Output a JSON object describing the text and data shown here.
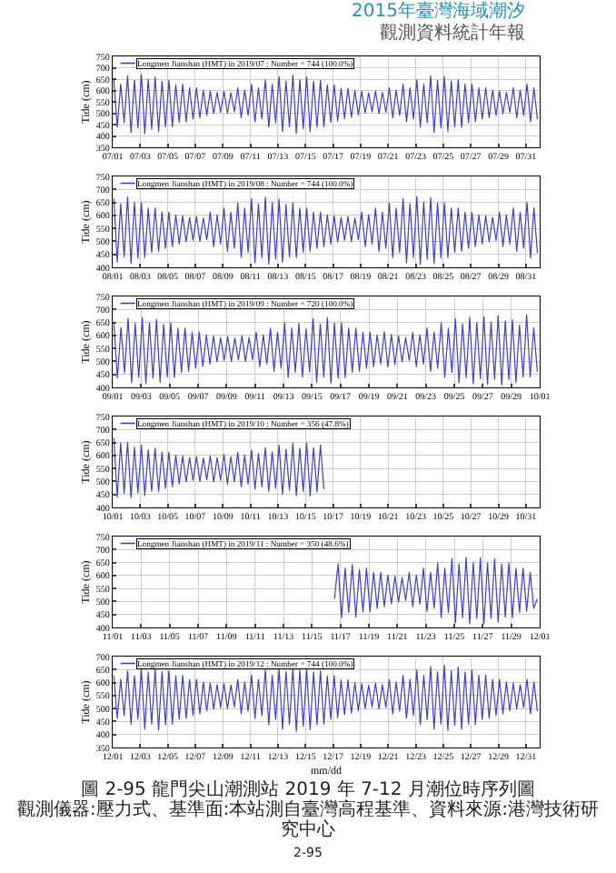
{
  "chart_data": [
    {
      "type": "line",
      "annotations": [
        "2015年臺灣海域潮汐",
        "觀測資料統計年報"
      ],
      "ylabel": "Tide (cm)",
      "legend": "top left",
      "grid": true,
      "xlim": [
        "2019-07-01",
        "2019-08-01"
      ],
      "xticks": [
        {
          "value": "2019-07-01",
          "label": "07/01"
        },
        {
          "value": "2019-07-03",
          "label": "07/03"
        },
        {
          "value": "2019-07-05",
          "label": "07/05"
        },
        {
          "value": "2019-07-07",
          "label": "07/07"
        },
        {
          "value": "2019-07-09",
          "label": "07/09"
        },
        {
          "value": "2019-07-11",
          "label": "07/11"
        },
        {
          "value": "2019-07-13",
          "label": "07/13"
        },
        {
          "value": "2019-07-15",
          "label": "07/15"
        },
        {
          "value": "2019-07-17",
          "label": "07/17"
        },
        {
          "value": "2019-07-19",
          "label": "07/19"
        },
        {
          "value": "2019-07-21",
          "label": "07/21"
        },
        {
          "value": "2019-07-23",
          "label": "07/23"
        },
        {
          "value": "2019-07-25",
          "label": "07/25"
        },
        {
          "value": "2019-07-27",
          "label": "07/27"
        },
        {
          "value": "2019-07-29",
          "label": "07/29"
        },
        {
          "value": "2019-07-31",
          "label": "07/31"
        }
      ],
      "ylim": [
        350,
        750
      ],
      "yticks": [
        350,
        400,
        450,
        500,
        550,
        600,
        650,
        700,
        750
      ],
      "x": [
        "2019-07-01T02:00",
        "2019-07-01T08:00",
        "2019-07-01T14:00",
        "2019-07-01T20:00",
        "2019-07-02T02:00",
        "2019-07-02T08:00",
        "2019-07-02T14:00",
        "2019-07-02T20:00",
        "2019-07-03T02:00",
        "2019-07-03T08:00",
        "2019-07-03T14:00",
        "2019-07-03T20:00",
        "2019-07-04T02:00",
        "2019-07-04T08:00",
        "2019-07-04T14:00",
        "2019-07-04T20:00",
        "2019-07-05T02:00",
        "2019-07-05T08:00",
        "2019-07-05T14:00",
        "2019-07-05T20:00",
        "2019-07-06T02:00",
        "2019-07-06T08:00",
        "2019-07-06T14:00",
        "2019-07-06T20:00",
        "2019-07-07T02:00",
        "2019-07-07T08:00",
        "2019-07-07T14:00",
        "2019-07-07T20:00",
        "2019-07-08T02:00",
        "2019-07-08T08:00",
        "2019-07-08T14:00",
        "2019-07-08T20:00",
        "2019-07-09T02:00",
        "2019-07-09T08:00",
        "2019-07-09T14:00",
        "2019-07-09T20:00",
        "2019-07-10T02:00",
        "2019-07-10T08:00",
        "2019-07-10T14:00",
        "2019-07-10T20:00",
        "2019-07-11T02:00",
        "2019-07-11T08:00",
        "2019-07-11T14:00",
        "2019-07-11T20:00",
        "2019-07-12T02:00",
        "2019-07-12T08:00",
        "2019-07-12T14:00",
        "2019-07-12T20:00",
        "2019-07-13T02:00",
        "2019-07-13T08:00",
        "2019-07-13T14:00",
        "2019-07-13T20:00",
        "2019-07-14T02:00",
        "2019-07-14T08:00",
        "2019-07-14T14:00",
        "2019-07-14T20:00",
        "2019-07-15T02:00",
        "2019-07-15T08:00",
        "2019-07-15T14:00",
        "2019-07-15T20:00",
        "2019-07-16T02:00",
        "2019-07-16T08:00",
        "2019-07-16T14:00",
        "2019-07-16T20:00",
        "2019-07-17T02:00",
        "2019-07-17T08:00",
        "2019-07-17T14:00",
        "2019-07-17T20:00",
        "2019-07-18T02:00",
        "2019-07-18T08:00",
        "2019-07-18T14:00",
        "2019-07-18T20:00",
        "2019-07-19T02:00",
        "2019-07-19T08:00",
        "2019-07-19T14:00",
        "2019-07-19T20:00",
        "2019-07-20T02:00",
        "2019-07-20T08:00",
        "2019-07-20T14:00",
        "2019-07-20T20:00",
        "2019-07-21T02:00",
        "2019-07-21T08:00",
        "2019-07-21T14:00",
        "2019-07-21T20:00",
        "2019-07-22T02:00",
        "2019-07-22T08:00",
        "2019-07-22T14:00",
        "2019-07-22T20:00",
        "2019-07-23T02:00",
        "2019-07-23T08:00",
        "2019-07-23T14:00",
        "2019-07-23T20:00",
        "2019-07-24T02:00",
        "2019-07-24T08:00",
        "2019-07-24T14:00",
        "2019-07-24T20:00",
        "2019-07-25T02:00",
        "2019-07-25T08:00",
        "2019-07-25T14:00",
        "2019-07-25T20:00",
        "2019-07-26T02:00",
        "2019-07-26T08:00",
        "2019-07-26T14:00",
        "2019-07-26T20:00",
        "2019-07-27T02:00",
        "2019-07-27T08:00",
        "2019-07-27T14:00",
        "2019-07-27T20:00",
        "2019-07-28T02:00",
        "2019-07-28T08:00",
        "2019-07-28T14:00",
        "2019-07-28T20:00",
        "2019-07-29T02:00",
        "2019-07-29T08:00",
        "2019-07-29T14:00",
        "2019-07-29T20:00",
        "2019-07-30T02:00",
        "2019-07-30T08:00",
        "2019-07-30T14:00",
        "2019-07-30T20:00",
        "2019-07-31T02:00",
        "2019-07-31T08:00",
        "2019-07-31T14:00",
        "2019-07-31T20:00"
      ],
      "series": [
        {
          "name": "Longmen Jianshan (HMT) in 2019/07 : Number = 744 (100.0%)",
          "color": "#4040c0",
          "values": [
            648,
            438,
            628,
            458,
            665,
            415,
            645,
            435,
            670,
            410,
            650,
            430,
            660,
            420,
            640,
            440,
            645,
            440,
            625,
            460,
            628,
            462,
            612,
            474,
            612,
            480,
            602,
            490,
            598,
            498,
            592,
            504,
            596,
            500,
            590,
            506,
            612,
            480,
            602,
            490,
            628,
            462,
            612,
            474,
            648,
            438,
            628,
            458,
            662,
            420,
            642,
            440,
            668,
            412,
            648,
            432,
            660,
            418,
            640,
            438,
            645,
            440,
            625,
            460,
            625,
            465,
            610,
            476,
            610,
            482,
            600,
            492,
            596,
            500,
            590,
            506,
            598,
            498,
            592,
            504,
            612,
            480,
            602,
            490,
            628,
            462,
            612,
            474,
            648,
            438,
            628,
            458,
            665,
            415,
            645,
            435,
            662,
            420,
            642,
            440,
            648,
            438,
            628,
            458,
            628,
            462,
            612,
            474,
            612,
            480,
            602,
            490,
            598,
            498,
            592,
            504,
            612,
            480,
            602,
            490,
            628,
            462,
            612,
            474
          ]
        }
      ]
    },
    {
      "type": "line",
      "ylabel": "Tide (cm)",
      "legend": "top left",
      "grid": true,
      "xlim": [
        "2019-08-01",
        "2019-09-01"
      ],
      "xticks": [
        {
          "value": "2019-08-01",
          "label": "08/01"
        },
        {
          "value": "2019-08-03",
          "label": "08/03"
        },
        {
          "value": "2019-08-05",
          "label": "08/05"
        },
        {
          "value": "2019-08-07",
          "label": "08/07"
        },
        {
          "value": "2019-08-09",
          "label": "08/09"
        },
        {
          "value": "2019-08-11",
          "label": "08/11"
        },
        {
          "value": "2019-08-13",
          "label": "08/13"
        },
        {
          "value": "2019-08-15",
          "label": "08/15"
        },
        {
          "value": "2019-08-17",
          "label": "08/17"
        },
        {
          "value": "2019-08-19",
          "label": "08/19"
        },
        {
          "value": "2019-08-21",
          "label": "08/21"
        },
        {
          "value": "2019-08-23",
          "label": "08/23"
        },
        {
          "value": "2019-08-25",
          "label": "08/25"
        },
        {
          "value": "2019-08-27",
          "label": "08/27"
        },
        {
          "value": "2019-08-29",
          "label": "08/29"
        },
        {
          "value": "2019-08-31",
          "label": "08/31"
        }
      ],
      "ylim": [
        400,
        750
      ],
      "yticks": [
        400,
        450,
        500,
        550,
        600,
        650,
        700,
        750
      ],
      "x": [
        "2019-08-01T02:00",
        "2019-08-01T08:00",
        "2019-08-01T14:00",
        "2019-08-01T20:00",
        "2019-08-02T02:00",
        "2019-08-02T08:00",
        "2019-08-02T14:00",
        "2019-08-02T20:00",
        "2019-08-03T02:00",
        "2019-08-03T08:00",
        "2019-08-03T14:00",
        "2019-08-03T20:00",
        "2019-08-04T02:00",
        "2019-08-04T08:00",
        "2019-08-04T14:00",
        "2019-08-04T20:00",
        "2019-08-05T02:00",
        "2019-08-05T08:00",
        "2019-08-05T14:00",
        "2019-08-05T20:00",
        "2019-08-06T02:00",
        "2019-08-06T08:00",
        "2019-08-06T14:00",
        "2019-08-06T20:00",
        "2019-08-07T02:00",
        "2019-08-07T08:00",
        "2019-08-07T14:00",
        "2019-08-07T20:00",
        "2019-08-08T02:00",
        "2019-08-08T08:00",
        "2019-08-08T14:00",
        "2019-08-08T20:00",
        "2019-08-09T02:00",
        "2019-08-09T08:00",
        "2019-08-09T14:00",
        "2019-08-09T20:00",
        "2019-08-10T02:00",
        "2019-08-10T08:00",
        "2019-08-10T14:00",
        "2019-08-10T20:00",
        "2019-08-11T02:00",
        "2019-08-11T08:00",
        "2019-08-11T14:00",
        "2019-08-11T20:00",
        "2019-08-12T02:00",
        "2019-08-12T08:00",
        "2019-08-12T14:00",
        "2019-08-12T20:00",
        "2019-08-13T02:00",
        "2019-08-13T08:00",
        "2019-08-13T14:00",
        "2019-08-13T20:00",
        "2019-08-14T02:00",
        "2019-08-14T08:00",
        "2019-08-14T14:00",
        "2019-08-14T20:00",
        "2019-08-15T02:00",
        "2019-08-15T08:00",
        "2019-08-15T14:00",
        "2019-08-15T20:00",
        "2019-08-16T02:00",
        "2019-08-16T08:00",
        "2019-08-16T14:00",
        "2019-08-16T20:00",
        "2019-08-17T02:00",
        "2019-08-17T08:00",
        "2019-08-17T14:00",
        "2019-08-17T20:00",
        "2019-08-18T02:00",
        "2019-08-18T08:00",
        "2019-08-18T14:00",
        "2019-08-18T20:00",
        "2019-08-19T02:00",
        "2019-08-19T08:00",
        "2019-08-19T14:00",
        "2019-08-19T20:00",
        "2019-08-20T02:00",
        "2019-08-20T08:00",
        "2019-08-20T14:00",
        "2019-08-20T20:00",
        "2019-08-21T02:00",
        "2019-08-21T08:00",
        "2019-08-21T14:00",
        "2019-08-21T20:00",
        "2019-08-22T02:00",
        "2019-08-22T08:00",
        "2019-08-22T14:00",
        "2019-08-22T20:00",
        "2019-08-23T02:00",
        "2019-08-23T08:00",
        "2019-08-23T14:00",
        "2019-08-23T20:00",
        "2019-08-24T02:00",
        "2019-08-24T08:00",
        "2019-08-24T14:00",
        "2019-08-24T20:00",
        "2019-08-25T02:00",
        "2019-08-25T08:00",
        "2019-08-25T14:00",
        "2019-08-25T20:00",
        "2019-08-26T02:00",
        "2019-08-26T08:00",
        "2019-08-26T14:00",
        "2019-08-26T20:00",
        "2019-08-27T02:00",
        "2019-08-27T08:00",
        "2019-08-27T14:00",
        "2019-08-27T20:00",
        "2019-08-28T02:00",
        "2019-08-28T08:00",
        "2019-08-28T14:00",
        "2019-08-28T20:00",
        "2019-08-29T02:00",
        "2019-08-29T08:00",
        "2019-08-29T14:00",
        "2019-08-29T20:00",
        "2019-08-30T02:00",
        "2019-08-30T08:00",
        "2019-08-30T14:00",
        "2019-08-30T20:00",
        "2019-08-31T02:00",
        "2019-08-31T08:00",
        "2019-08-31T14:00",
        "2019-08-31T20:00"
      ],
      "series": [
        {
          "name": "Longmen Jianshan (HMT) in 2019/08 : Number = 744 (100.0%)",
          "color": "#4040c0",
          "values": [
            665,
            420,
            645,
            440,
            670,
            415,
            650,
            435,
            648,
            438,
            628,
            458,
            628,
            462,
            612,
            474,
            612,
            480,
            602,
            490,
            598,
            498,
            592,
            504,
            596,
            500,
            590,
            506,
            612,
            480,
            602,
            490,
            628,
            462,
            612,
            474,
            648,
            438,
            628,
            458,
            665,
            418,
            645,
            438,
            670,
            412,
            650,
            432,
            662,
            420,
            642,
            440,
            648,
            438,
            628,
            458,
            628,
            462,
            612,
            474,
            612,
            480,
            602,
            490,
            598,
            498,
            592,
            504,
            596,
            500,
            590,
            506,
            612,
            480,
            602,
            490,
            628,
            462,
            612,
            474,
            648,
            438,
            628,
            458,
            665,
            418,
            645,
            438,
            672,
            412,
            652,
            432,
            668,
            415,
            648,
            435,
            648,
            438,
            628,
            458,
            628,
            462,
            612,
            474,
            612,
            480,
            602,
            490,
            598,
            498,
            592,
            504,
            612,
            480,
            602,
            490,
            628,
            462,
            612,
            474,
            650,
            436,
            630,
            456
          ]
        }
      ]
    },
    {
      "type": "line",
      "ylabel": "Tide (cm)",
      "legend": "top left",
      "grid": true,
      "xlim": [
        "2019-09-01",
        "2019-10-01"
      ],
      "xticks": [
        {
          "value": "2019-09-01",
          "label": "09/01"
        },
        {
          "value": "2019-09-03",
          "label": "09/03"
        },
        {
          "value": "2019-09-05",
          "label": "09/05"
        },
        {
          "value": "2019-09-07",
          "label": "09/07"
        },
        {
          "value": "2019-09-09",
          "label": "09/09"
        },
        {
          "value": "2019-09-11",
          "label": "09/11"
        },
        {
          "value": "2019-09-13",
          "label": "09/13"
        },
        {
          "value": "2019-09-15",
          "label": "09/15"
        },
        {
          "value": "2019-09-17",
          "label": "09/17"
        },
        {
          "value": "2019-09-19",
          "label": "09/19"
        },
        {
          "value": "2019-09-21",
          "label": "09/21"
        },
        {
          "value": "2019-09-23",
          "label": "09/23"
        },
        {
          "value": "2019-09-25",
          "label": "09/25"
        },
        {
          "value": "2019-09-27",
          "label": "09/27"
        },
        {
          "value": "2019-09-29",
          "label": "09/29"
        },
        {
          "value": "2019-10-01",
          "label": "10/01"
        }
      ],
      "ylim": [
        400,
        750
      ],
      "yticks": [
        400,
        450,
        500,
        550,
        600,
        650,
        700,
        750
      ],
      "x": [
        "2019-09-01T02:00",
        "2019-09-01T08:00",
        "2019-09-01T14:00",
        "2019-09-01T20:00",
        "2019-09-02T02:00",
        "2019-09-02T08:00",
        "2019-09-02T14:00",
        "2019-09-02T20:00",
        "2019-09-03T02:00",
        "2019-09-03T08:00",
        "2019-09-03T14:00",
        "2019-09-03T20:00",
        "2019-09-04T02:00",
        "2019-09-04T08:00",
        "2019-09-04T14:00",
        "2019-09-04T20:00",
        "2019-09-05T02:00",
        "2019-09-05T08:00",
        "2019-09-05T14:00",
        "2019-09-05T20:00",
        "2019-09-06T02:00",
        "2019-09-06T08:00",
        "2019-09-06T14:00",
        "2019-09-06T20:00",
        "2019-09-07T02:00",
        "2019-09-07T08:00",
        "2019-09-07T14:00",
        "2019-09-07T20:00",
        "2019-09-08T02:00",
        "2019-09-08T08:00",
        "2019-09-08T14:00",
        "2019-09-08T20:00",
        "2019-09-09T02:00",
        "2019-09-09T08:00",
        "2019-09-09T14:00",
        "2019-09-09T20:00",
        "2019-09-10T02:00",
        "2019-09-10T08:00",
        "2019-09-10T14:00",
        "2019-09-10T20:00",
        "2019-09-11T02:00",
        "2019-09-11T08:00",
        "2019-09-11T14:00",
        "2019-09-11T20:00",
        "2019-09-12T02:00",
        "2019-09-12T08:00",
        "2019-09-12T14:00",
        "2019-09-12T20:00",
        "2019-09-13T02:00",
        "2019-09-13T08:00",
        "2019-09-13T14:00",
        "2019-09-13T20:00",
        "2019-09-14T02:00",
        "2019-09-14T08:00",
        "2019-09-14T14:00",
        "2019-09-14T20:00",
        "2019-09-15T02:00",
        "2019-09-15T08:00",
        "2019-09-15T14:00",
        "2019-09-15T20:00",
        "2019-09-16T02:00",
        "2019-09-16T08:00",
        "2019-09-16T14:00",
        "2019-09-16T20:00",
        "2019-09-17T02:00",
        "2019-09-17T08:00",
        "2019-09-17T14:00",
        "2019-09-17T20:00",
        "2019-09-18T02:00",
        "2019-09-18T08:00",
        "2019-09-18T14:00",
        "2019-09-18T20:00",
        "2019-09-19T02:00",
        "2019-09-19T08:00",
        "2019-09-19T14:00",
        "2019-09-19T20:00",
        "2019-09-20T02:00",
        "2019-09-20T08:00",
        "2019-09-20T14:00",
        "2019-09-20T20:00",
        "2019-09-21T02:00",
        "2019-09-21T08:00",
        "2019-09-21T14:00",
        "2019-09-21T20:00",
        "2019-09-22T02:00",
        "2019-09-22T08:00",
        "2019-09-22T14:00",
        "2019-09-22T20:00",
        "2019-09-23T02:00",
        "2019-09-23T08:00",
        "2019-09-23T14:00",
        "2019-09-23T20:00",
        "2019-09-24T02:00",
        "2019-09-24T08:00",
        "2019-09-24T14:00",
        "2019-09-24T20:00",
        "2019-09-25T02:00",
        "2019-09-25T08:00",
        "2019-09-25T14:00",
        "2019-09-25T20:00",
        "2019-09-26T02:00",
        "2019-09-26T08:00",
        "2019-09-26T14:00",
        "2019-09-26T20:00",
        "2019-09-27T02:00",
        "2019-09-27T08:00",
        "2019-09-27T14:00",
        "2019-09-27T20:00",
        "2019-09-28T02:00",
        "2019-09-28T08:00",
        "2019-09-28T14:00",
        "2019-09-28T20:00",
        "2019-09-29T02:00",
        "2019-09-29T08:00",
        "2019-09-29T14:00",
        "2019-09-29T20:00",
        "2019-09-30T02:00",
        "2019-09-30T08:00",
        "2019-09-30T14:00",
        "2019-09-30T20:00"
      ],
      "series": [
        {
          "name": "Longmen Jianshan (HMT) in 2019/09 : Number = 720 (100.0%)",
          "color": "#4040c0",
          "values": [
            650,
            436,
            630,
            456,
            666,
            418,
            646,
            438,
            668,
            415,
            648,
            435,
            662,
            420,
            642,
            440,
            648,
            438,
            628,
            458,
            628,
            462,
            612,
            474,
            612,
            480,
            602,
            490,
            598,
            498,
            592,
            504,
            596,
            500,
            590,
            506,
            598,
            500,
            592,
            506,
            612,
            480,
            602,
            490,
            628,
            462,
            612,
            474,
            648,
            438,
            628,
            458,
            646,
            440,
            626,
            460,
            664,
            420,
            644,
            440,
            668,
            416,
            648,
            436,
            648,
            438,
            628,
            458,
            628,
            462,
            612,
            474,
            612,
            480,
            602,
            490,
            614,
            478,
            604,
            488,
            598,
            498,
            592,
            504,
            612,
            480,
            602,
            490,
            628,
            462,
            612,
            474,
            648,
            438,
            628,
            458,
            665,
            418,
            645,
            438,
            670,
            414,
            650,
            434,
            672,
            412,
            652,
            432,
            676,
            410,
            656,
            430,
            660,
            420,
            640,
            440,
            680,
            440,
            630,
            460
          ]
        }
      ]
    },
    {
      "type": "line",
      "ylabel": "Tide (cm)",
      "legend": "top left",
      "grid": true,
      "xlim": [
        "2019-10-01",
        "2019-11-01"
      ],
      "xticks": [
        {
          "value": "2019-10-01",
          "label": "10/01"
        },
        {
          "value": "2019-10-03",
          "label": "10/03"
        },
        {
          "value": "2019-10-05",
          "label": "10/05"
        },
        {
          "value": "2019-10-07",
          "label": "10/07"
        },
        {
          "value": "2019-10-09",
          "label": "10/09"
        },
        {
          "value": "2019-10-11",
          "label": "10/11"
        },
        {
          "value": "2019-10-13",
          "label": "10/13"
        },
        {
          "value": "2019-10-15",
          "label": "10/15"
        },
        {
          "value": "2019-10-17",
          "label": "10/17"
        },
        {
          "value": "2019-10-19",
          "label": "10/19"
        },
        {
          "value": "2019-10-21",
          "label": "10/21"
        },
        {
          "value": "2019-10-23",
          "label": "10/23"
        },
        {
          "value": "2019-10-25",
          "label": "10/25"
        },
        {
          "value": "2019-10-27",
          "label": "10/27"
        },
        {
          "value": "2019-10-29",
          "label": "10/29"
        },
        {
          "value": "2019-10-31",
          "label": "10/31"
        }
      ],
      "ylim": [
        400,
        750
      ],
      "yticks": [
        400,
        450,
        500,
        550,
        600,
        650,
        700,
        750
      ],
      "x": [
        "2019-10-01T02:00",
        "2019-10-01T08:00",
        "2019-10-01T14:00",
        "2019-10-01T20:00",
        "2019-10-02T02:00",
        "2019-10-02T08:00",
        "2019-10-02T14:00",
        "2019-10-02T20:00",
        "2019-10-03T02:00",
        "2019-10-03T08:00",
        "2019-10-03T14:00",
        "2019-10-03T20:00",
        "2019-10-04T02:00",
        "2019-10-04T08:00",
        "2019-10-04T14:00",
        "2019-10-04T20:00",
        "2019-10-05T02:00",
        "2019-10-05T08:00",
        "2019-10-05T14:00",
        "2019-10-05T20:00",
        "2019-10-06T02:00",
        "2019-10-06T08:00",
        "2019-10-06T14:00",
        "2019-10-06T20:00",
        "2019-10-07T02:00",
        "2019-10-07T08:00",
        "2019-10-07T14:00",
        "2019-10-07T20:00",
        "2019-10-08T02:00",
        "2019-10-08T08:00",
        "2019-10-08T14:00",
        "2019-10-08T20:00",
        "2019-10-09T02:00",
        "2019-10-09T08:00",
        "2019-10-09T14:00",
        "2019-10-09T20:00",
        "2019-10-10T02:00",
        "2019-10-10T08:00",
        "2019-10-10T14:00",
        "2019-10-10T20:00",
        "2019-10-11T02:00",
        "2019-10-11T08:00",
        "2019-10-11T14:00",
        "2019-10-11T20:00",
        "2019-10-12T02:00",
        "2019-10-12T08:00",
        "2019-10-12T14:00",
        "2019-10-12T20:00",
        "2019-10-13T02:00",
        "2019-10-13T08:00",
        "2019-10-13T14:00",
        "2019-10-13T20:00",
        "2019-10-14T02:00",
        "2019-10-14T08:00",
        "2019-10-14T14:00",
        "2019-10-14T20:00",
        "2019-10-15T02:00",
        "2019-10-15T08:00",
        "2019-10-15T14:00",
        "2019-10-15T20:00",
        "2019-10-16T02:00",
        "2019-10-16T08:00"
      ],
      "series": [
        {
          "name": "Longmen Jianshan (HMT) in 2019/10 : Number = 356 (47.8%)",
          "color": "#4040c0",
          "values": [
            668,
            440,
            648,
            455,
            650,
            438,
            632,
            456,
            640,
            446,
            622,
            462,
            628,
            462,
            612,
            474,
            612,
            480,
            602,
            490,
            598,
            498,
            592,
            504,
            596,
            500,
            590,
            506,
            598,
            498,
            592,
            504,
            604,
            490,
            596,
            498,
            612,
            480,
            602,
            490,
            620,
            470,
            608,
            480,
            630,
            462,
            614,
            474,
            640,
            450,
            624,
            466,
            646,
            446,
            628,
            462,
            648,
            444,
            630,
            460,
            640,
            470
          ]
        }
      ]
    },
    {
      "type": "line",
      "ylabel": "Tide (cm)",
      "legend": "top left",
      "grid": true,
      "xlim": [
        "2019-11-01",
        "2019-12-01"
      ],
      "xticks": [
        {
          "value": "2019-11-01",
          "label": "11/01"
        },
        {
          "value": "2019-11-03",
          "label": "11/03"
        },
        {
          "value": "2019-11-05",
          "label": "11/05"
        },
        {
          "value": "2019-11-07",
          "label": "11/07"
        },
        {
          "value": "2019-11-09",
          "label": "11/09"
        },
        {
          "value": "2019-11-11",
          "label": "11/11"
        },
        {
          "value": "2019-11-13",
          "label": "11/13"
        },
        {
          "value": "2019-11-15",
          "label": "11/15"
        },
        {
          "value": "2019-11-17",
          "label": "11/17"
        },
        {
          "value": "2019-11-19",
          "label": "11/19"
        },
        {
          "value": "2019-11-21",
          "label": "11/21"
        },
        {
          "value": "2019-11-23",
          "label": "11/23"
        },
        {
          "value": "2019-11-25",
          "label": "11/25"
        },
        {
          "value": "2019-11-27",
          "label": "11/27"
        },
        {
          "value": "2019-11-29",
          "label": "11/29"
        },
        {
          "value": "2019-12-01",
          "label": "12/01"
        }
      ],
      "ylim": [
        400,
        750
      ],
      "yticks": [
        400,
        450,
        500,
        550,
        600,
        650,
        700,
        750
      ],
      "x": [
        "2019-11-16T14:00",
        "2019-11-16T20:00",
        "2019-11-17T02:00",
        "2019-11-17T08:00",
        "2019-11-17T14:00",
        "2019-11-17T20:00",
        "2019-11-18T02:00",
        "2019-11-18T08:00",
        "2019-11-18T14:00",
        "2019-11-18T20:00",
        "2019-11-19T02:00",
        "2019-11-19T08:00",
        "2019-11-19T14:00",
        "2019-11-19T20:00",
        "2019-11-20T02:00",
        "2019-11-20T08:00",
        "2019-11-20T14:00",
        "2019-11-20T20:00",
        "2019-11-21T02:00",
        "2019-11-21T08:00",
        "2019-11-21T14:00",
        "2019-11-21T20:00",
        "2019-11-22T02:00",
        "2019-11-22T08:00",
        "2019-11-22T14:00",
        "2019-11-22T20:00",
        "2019-11-23T02:00",
        "2019-11-23T08:00",
        "2019-11-23T14:00",
        "2019-11-23T20:00",
        "2019-11-24T02:00",
        "2019-11-24T08:00",
        "2019-11-24T14:00",
        "2019-11-24T20:00",
        "2019-11-25T02:00",
        "2019-11-25T08:00",
        "2019-11-25T14:00",
        "2019-11-25T20:00",
        "2019-11-26T02:00",
        "2019-11-26T08:00",
        "2019-11-26T14:00",
        "2019-11-26T20:00",
        "2019-11-27T02:00",
        "2019-11-27T08:00",
        "2019-11-27T14:00",
        "2019-11-27T20:00",
        "2019-11-28T02:00",
        "2019-11-28T08:00",
        "2019-11-28T14:00",
        "2019-11-28T20:00",
        "2019-11-29T02:00",
        "2019-11-29T08:00",
        "2019-11-29T14:00",
        "2019-11-29T20:00",
        "2019-11-30T02:00",
        "2019-11-30T08:00",
        "2019-11-30T14:00",
        "2019-11-30T20:00"
      ],
      "series": [
        {
          "name": "Longmen Jianshan (HMT) in 2019/11 : Number = 350 (48.6%)",
          "color": "#4040c0",
          "values": [
            510,
            645,
            438,
            628,
            458,
            642,
            440,
            624,
            460,
            628,
            462,
            612,
            474,
            612,
            480,
            602,
            490,
            598,
            498,
            592,
            504,
            612,
            480,
            602,
            490,
            628,
            462,
            612,
            474,
            648,
            438,
            628,
            458,
            665,
            418,
            645,
            438,
            670,
            414,
            650,
            434,
            668,
            415,
            648,
            435,
            664,
            420,
            644,
            440,
            648,
            438,
            628,
            458,
            628,
            462,
            612,
            474,
            510
          ]
        }
      ]
    },
    {
      "type": "line",
      "ylabel": "Tide (cm)",
      "xlabel": "mm/dd",
      "annotations": [
        "圖 2-95 龍門尖山潮測站 2019 年 7-12 月潮位時序列圖",
        "觀測儀器:壓力式、基準面:本站測自臺灣高程基準、資料來源:港灣技術研究中心",
        "2-95"
      ],
      "legend": "top left",
      "grid": true,
      "xlim": [
        "2019-12-01",
        "2020-01-01"
      ],
      "xticks": [
        {
          "value": "2019-12-01",
          "label": "12/01"
        },
        {
          "value": "2019-12-03",
          "label": "12/03"
        },
        {
          "value": "2019-12-05",
          "label": "12/05"
        },
        {
          "value": "2019-12-07",
          "label": "12/07"
        },
        {
          "value": "2019-12-09",
          "label": "12/09"
        },
        {
          "value": "2019-12-11",
          "label": "12/11"
        },
        {
          "value": "2019-12-13",
          "label": "12/13"
        },
        {
          "value": "2019-12-15",
          "label": "12/15"
        },
        {
          "value": "2019-12-17",
          "label": "12/17"
        },
        {
          "value": "2019-12-19",
          "label": "12/19"
        },
        {
          "value": "2019-12-21",
          "label": "12/21"
        },
        {
          "value": "2019-12-23",
          "label": "12/23"
        },
        {
          "value": "2019-12-25",
          "label": "12/25"
        },
        {
          "value": "2019-12-27",
          "label": "12/27"
        },
        {
          "value": "2019-12-29",
          "label": "12/29"
        },
        {
          "value": "2019-12-31",
          "label": "12/31"
        }
      ],
      "ylim": [
        350,
        700
      ],
      "yticks": [
        350,
        400,
        450,
        500,
        550,
        600,
        650,
        700
      ],
      "x": [
        "2019-12-01T02:00",
        "2019-12-01T08:00",
        "2019-12-01T14:00",
        "2019-12-01T20:00",
        "2019-12-02T02:00",
        "2019-12-02T08:00",
        "2019-12-02T14:00",
        "2019-12-02T20:00",
        "2019-12-03T02:00",
        "2019-12-03T08:00",
        "2019-12-03T14:00",
        "2019-12-03T20:00",
        "2019-12-04T02:00",
        "2019-12-04T08:00",
        "2019-12-04T14:00",
        "2019-12-04T20:00",
        "2019-12-05T02:00",
        "2019-12-05T08:00",
        "2019-12-05T14:00",
        "2019-12-05T20:00",
        "2019-12-06T02:00",
        "2019-12-06T08:00",
        "2019-12-06T14:00",
        "2019-12-06T20:00",
        "2019-12-07T02:00",
        "2019-12-07T08:00",
        "2019-12-07T14:00",
        "2019-12-07T20:00",
        "2019-12-08T02:00",
        "2019-12-08T08:00",
        "2019-12-08T14:00",
        "2019-12-08T20:00",
        "2019-12-09T02:00",
        "2019-12-09T08:00",
        "2019-12-09T14:00",
        "2019-12-09T20:00",
        "2019-12-10T02:00",
        "2019-12-10T08:00",
        "2019-12-10T14:00",
        "2019-12-10T20:00",
        "2019-12-11T02:00",
        "2019-12-11T08:00",
        "2019-12-11T14:00",
        "2019-12-11T20:00",
        "2019-12-12T02:00",
        "2019-12-12T08:00",
        "2019-12-12T14:00",
        "2019-12-12T20:00",
        "2019-12-13T02:00",
        "2019-12-13T08:00",
        "2019-12-13T14:00",
        "2019-12-13T20:00",
        "2019-12-14T02:00",
        "2019-12-14T08:00",
        "2019-12-14T14:00",
        "2019-12-14T20:00",
        "2019-12-15T02:00",
        "2019-12-15T08:00",
        "2019-12-15T14:00",
        "2019-12-15T20:00",
        "2019-12-16T02:00",
        "2019-12-16T08:00",
        "2019-12-16T14:00",
        "2019-12-16T20:00",
        "2019-12-17T02:00",
        "2019-12-17T08:00",
        "2019-12-17T14:00",
        "2019-12-17T20:00",
        "2019-12-18T02:00",
        "2019-12-18T08:00",
        "2019-12-18T14:00",
        "2019-12-18T20:00",
        "2019-12-19T02:00",
        "2019-12-19T08:00",
        "2019-12-19T14:00",
        "2019-12-19T20:00",
        "2019-12-20T02:00",
        "2019-12-20T08:00",
        "2019-12-20T14:00",
        "2019-12-20T20:00",
        "2019-12-21T02:00",
        "2019-12-21T08:00",
        "2019-12-21T14:00",
        "2019-12-21T20:00",
        "2019-12-22T02:00",
        "2019-12-22T08:00",
        "2019-12-22T14:00",
        "2019-12-22T20:00",
        "2019-12-23T02:00",
        "2019-12-23T08:00",
        "2019-12-23T14:00",
        "2019-12-23T20:00",
        "2019-12-24T02:00",
        "2019-12-24T08:00",
        "2019-12-24T14:00",
        "2019-12-24T20:00",
        "2019-12-25T02:00",
        "2019-12-25T08:00",
        "2019-12-25T14:00",
        "2019-12-25T20:00",
        "2019-12-26T02:00",
        "2019-12-26T08:00",
        "2019-12-26T14:00",
        "2019-12-26T20:00",
        "2019-12-27T02:00",
        "2019-12-27T08:00",
        "2019-12-27T14:00",
        "2019-12-27T20:00",
        "2019-12-28T02:00",
        "2019-12-28T08:00",
        "2019-12-28T14:00",
        "2019-12-28T20:00",
        "2019-12-29T02:00",
        "2019-12-29T08:00",
        "2019-12-29T14:00",
        "2019-12-29T20:00",
        "2019-12-30T02:00",
        "2019-12-30T08:00",
        "2019-12-30T14:00",
        "2019-12-30T20:00",
        "2019-12-31T02:00",
        "2019-12-31T08:00",
        "2019-12-31T14:00",
        "2019-12-31T20:00"
      ],
      "series": [
        {
          "name": "Longmen Jianshan (HMT) in 2019/12 : Number = 744 (100.0%)",
          "color": "#4040c0",
          "values": [
            628,
            462,
            612,
            474,
            645,
            440,
            625,
            460,
            650,
            420,
            640,
            440,
            652,
            418,
            642,
            438,
            645,
            440,
            625,
            460,
            628,
            462,
            612,
            474,
            612,
            480,
            602,
            490,
            598,
            498,
            592,
            504,
            596,
            500,
            590,
            506,
            612,
            480,
            602,
            490,
            628,
            462,
            612,
            474,
            648,
            438,
            628,
            458,
            652,
            420,
            642,
            440,
            655,
            412,
            648,
            432,
            650,
            418,
            640,
            438,
            645,
            440,
            625,
            460,
            625,
            465,
            610,
            476,
            610,
            482,
            600,
            492,
            596,
            500,
            590,
            506,
            598,
            498,
            592,
            504,
            612,
            480,
            602,
            490,
            628,
            462,
            612,
            474,
            648,
            438,
            628,
            458,
            662,
            420,
            642,
            440,
            666,
            416,
            646,
            436,
            660,
            420,
            640,
            440,
            648,
            438,
            628,
            458,
            628,
            462,
            612,
            474,
            612,
            480,
            602,
            490,
            598,
            498,
            592,
            504,
            612,
            480,
            602,
            490
          ]
        }
      ]
    }
  ]
}
